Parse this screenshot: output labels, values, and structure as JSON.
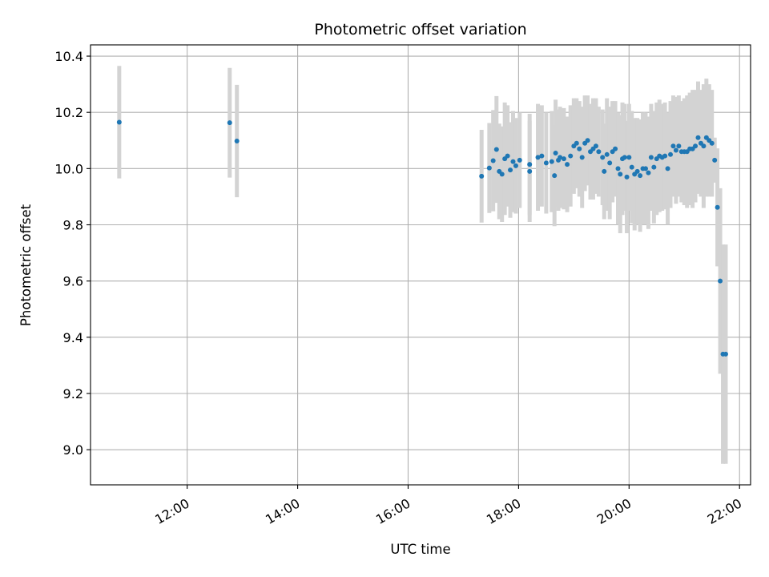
{
  "chart_data": {
    "type": "scatter",
    "title": "Photometric offset variation",
    "xlabel": "UTC time",
    "ylabel": "Photometric offset",
    "x_unit": "UTC hour",
    "xlim": [
      10.25,
      22.2
    ],
    "ylim": [
      8.875,
      10.44
    ],
    "grid": true,
    "legend": "none",
    "x_ticks": [
      {
        "value": 12,
        "label": "12:00"
      },
      {
        "value": 14,
        "label": "14:00"
      },
      {
        "value": 16,
        "label": "16:00"
      },
      {
        "value": 18,
        "label": "18:00"
      },
      {
        "value": 20,
        "label": "20:00"
      },
      {
        "value": 22,
        "label": "22:00"
      }
    ],
    "y_ticks": [
      {
        "value": 9.0,
        "label": "9.0"
      },
      {
        "value": 9.2,
        "label": "9.2"
      },
      {
        "value": 9.4,
        "label": "9.4"
      },
      {
        "value": 9.6,
        "label": "9.6"
      },
      {
        "value": 9.8,
        "label": "9.8"
      },
      {
        "value": 10.0,
        "label": "10.0"
      },
      {
        "value": 10.2,
        "label": "10.2"
      },
      {
        "value": 10.4,
        "label": "10.4"
      }
    ],
    "colors": {
      "points": "#1f77b4",
      "errorbars": "#d3d3d3",
      "grid": "#b0b0b0"
    },
    "series": [
      {
        "x": [
          10.77,
          12.77,
          12.9,
          17.33,
          17.47,
          17.54,
          17.6,
          17.65,
          17.7,
          17.75,
          17.8,
          17.85,
          17.9,
          17.95,
          18.02,
          18.2,
          18.2,
          18.35,
          18.42,
          18.5,
          18.6,
          18.65,
          18.67,
          18.72,
          18.75,
          18.82,
          18.88,
          18.94,
          19.0,
          19.05,
          19.1,
          19.15,
          19.2,
          19.25,
          19.3,
          19.35,
          19.4,
          19.45,
          19.52,
          19.55,
          19.6,
          19.65,
          19.7,
          19.75,
          19.8,
          19.84,
          19.88,
          19.92,
          19.96,
          20.0,
          20.05,
          20.1,
          20.15,
          20.2,
          20.25,
          20.3,
          20.35,
          20.4,
          20.45,
          20.5,
          20.55,
          20.6,
          20.65,
          20.7,
          20.75,
          20.8,
          20.85,
          20.9,
          20.95,
          21.0,
          21.05,
          21.1,
          21.15,
          21.2,
          21.25,
          21.3,
          21.35,
          21.4,
          21.45,
          21.5,
          21.55,
          21.6,
          21.65,
          21.7,
          21.75
        ],
        "y": [
          10.165,
          10.163,
          10.098,
          9.973,
          10.002,
          10.028,
          10.068,
          9.99,
          9.98,
          10.035,
          10.045,
          9.995,
          10.025,
          10.01,
          10.03,
          9.99,
          10.015,
          10.04,
          10.045,
          10.02,
          10.025,
          9.975,
          10.055,
          10.03,
          10.04,
          10.035,
          10.015,
          10.045,
          10.08,
          10.09,
          10.07,
          10.04,
          10.09,
          10.1,
          10.06,
          10.07,
          10.08,
          10.06,
          10.04,
          9.99,
          10.05,
          10.02,
          10.06,
          10.07,
          10.0,
          9.98,
          10.035,
          10.04,
          9.97,
          10.04,
          10.005,
          9.98,
          9.99,
          9.975,
          10.0,
          10.0,
          9.985,
          10.04,
          10.005,
          10.035,
          10.045,
          10.04,
          10.045,
          10.0,
          10.05,
          10.08,
          10.065,
          10.08,
          10.06,
          10.06,
          10.06,
          10.07,
          10.07,
          10.08,
          10.11,
          10.09,
          10.08,
          10.11,
          10.1,
          10.09,
          10.03,
          9.862,
          9.6,
          9.34,
          9.34
        ],
        "yerr": [
          0.2,
          0.195,
          0.2,
          0.165,
          0.16,
          0.18,
          0.19,
          0.17,
          0.17,
          0.2,
          0.18,
          0.17,
          0.18,
          0.17,
          0.17,
          0.18,
          0.18,
          0.19,
          0.18,
          0.18,
          0.18,
          0.18,
          0.19,
          0.18,
          0.18,
          0.18,
          0.17,
          0.18,
          0.17,
          0.16,
          0.17,
          0.18,
          0.17,
          0.16,
          0.17,
          0.18,
          0.17,
          0.16,
          0.17,
          0.17,
          0.2,
          0.2,
          0.18,
          0.17,
          0.2,
          0.21,
          0.2,
          0.19,
          0.2,
          0.19,
          0.2,
          0.2,
          0.19,
          0.2,
          0.2,
          0.2,
          0.2,
          0.19,
          0.2,
          0.2,
          0.2,
          0.19,
          0.19,
          0.2,
          0.19,
          0.18,
          0.19,
          0.18,
          0.18,
          0.19,
          0.2,
          0.2,
          0.21,
          0.2,
          0.2,
          0.19,
          0.22,
          0.21,
          0.2,
          0.19,
          0.08,
          0.21,
          0.33,
          0.39,
          0.39
        ]
      }
    ]
  }
}
